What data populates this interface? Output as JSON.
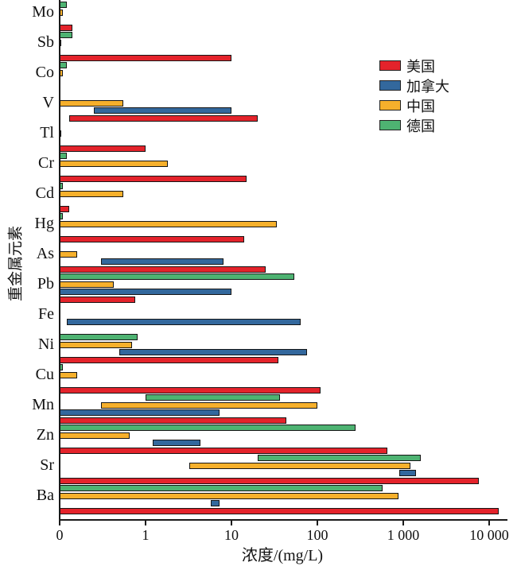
{
  "chart_data": {
    "type": "bar",
    "subtype": "horizontal-range-bars",
    "title": "",
    "xlabel": "浓度/(mg/L)",
    "ylabel": "重金属元素",
    "x_scale": "log",
    "x_tick_labels": [
      "0",
      "1",
      "10",
      "100",
      "1 000",
      "10 000"
    ],
    "x_tick_values": [
      0.1,
      1,
      10,
      100,
      1000,
      10000
    ],
    "grid": false,
    "legend_position": "upper-right-inside",
    "elements_top_to_bottom": [
      "Mo",
      "Sb",
      "Co",
      "V",
      "Tl",
      "Cr",
      "Cd",
      "Hg",
      "As",
      "Pb",
      "Fe",
      "Ni",
      "Cu",
      "Mn",
      "Zn",
      "Sr",
      "Ba"
    ],
    "group_order_note": "bars within each element group, top to bottom: 德国, 中国, 加拿大, 美国",
    "legend": [
      {
        "id": "usa",
        "label": "美国",
        "color": "#E4232B"
      },
      {
        "id": "canada",
        "label": "加拿大",
        "color": "#33689D"
      },
      {
        "id": "china",
        "label": "中国",
        "color": "#F6B02C"
      },
      {
        "id": "germany",
        "label": "德国",
        "color": "#4EB372"
      }
    ],
    "series": [
      {
        "id": "germany",
        "name": "德国",
        "color": "#4EB372",
        "ranges_mg_L": {
          "Mo": [
            0.1,
            0.12
          ],
          "Sb": [
            0.1,
            0.14
          ],
          "Co": [
            0.1,
            0.12
          ],
          "V": null,
          "Tl": null,
          "Cr": [
            0.1,
            0.12
          ],
          "Cd": [
            0.1,
            0.11
          ],
          "Hg": [
            0.1,
            0.11
          ],
          "As": null,
          "Pb": [
            0.1,
            54
          ],
          "Fe": null,
          "Ni": [
            0.1,
            0.8
          ],
          "Cu": [
            0.1,
            0.11
          ],
          "Mn": [
            1.0,
            37
          ],
          "Zn": [
            0.1,
            280
          ],
          "Sr": [
            20,
            1600
          ],
          "Ba": [
            0.1,
            580
          ]
        }
      },
      {
        "id": "china",
        "name": "中国",
        "color": "#F6B02C",
        "ranges_mg_L": {
          "Mo": [
            0.1,
            0.11
          ],
          "Sb": [
            0.1,
            0.105
          ],
          "Co": [
            0.1,
            0.11
          ],
          "V": [
            0.1,
            0.55
          ],
          "Tl": [
            0.1,
            0.105
          ],
          "Cr": [
            0.1,
            1.8
          ],
          "Cd": [
            0.1,
            0.55
          ],
          "Hg": [
            0.1,
            34
          ],
          "As": [
            0.1,
            0.16
          ],
          "Pb": [
            0.1,
            0.43
          ],
          "Fe": null,
          "Ni": [
            0.1,
            0.7
          ],
          "Cu": [
            0.1,
            0.16
          ],
          "Mn": [
            0.3,
            100
          ],
          "Zn": [
            0.1,
            0.65
          ],
          "Sr": [
            3.2,
            1200
          ],
          "Ba": [
            0.1,
            880
          ]
        }
      },
      {
        "id": "canada",
        "name": "加拿大",
        "color": "#33689D",
        "ranges_mg_L": {
          "Mo": null,
          "Sb": null,
          "Co": null,
          "V": [
            0.25,
            10
          ],
          "Tl": null,
          "Cr": null,
          "Cd": null,
          "Hg": null,
          "As": [
            0.3,
            8
          ],
          "Pb": [
            0.1,
            10
          ],
          "Fe": [
            0.12,
            64
          ],
          "Ni": [
            0.5,
            75
          ],
          "Cu": null,
          "Mn": [
            0.1,
            7.2
          ],
          "Zn": [
            1.2,
            4.4
          ],
          "Sr": [
            900,
            1400
          ],
          "Ba": [
            5.7,
            7.3
          ]
        }
      },
      {
        "id": "usa",
        "name": "美国",
        "color": "#E4232B",
        "ranges_mg_L": {
          "Mo": [
            0.1,
            0.14
          ],
          "Sb": [
            0.1,
            10
          ],
          "Co": null,
          "V": [
            0.13,
            20
          ],
          "Tl": [
            0.1,
            1.0
          ],
          "Cr": [
            0.1,
            15
          ],
          "Cd": [
            0.1,
            0.13
          ],
          "Hg": [
            0.1,
            14
          ],
          "As": [
            0.1,
            25
          ],
          "Pb": [
            0.1,
            0.76
          ],
          "Fe": null,
          "Ni": [
            0.1,
            35
          ],
          "Cu": [
            0.1,
            110
          ],
          "Mn": [
            0.1,
            44
          ],
          "Zn": [
            0.1,
            650
          ],
          "Sr": [
            0.1,
            7600
          ],
          "Ba": [
            0.1,
            13000
          ]
        }
      }
    ],
    "axis_note": "x position labeled 0 is the axis origin (bars starting there begin below 0.1 mg/L)"
  }
}
